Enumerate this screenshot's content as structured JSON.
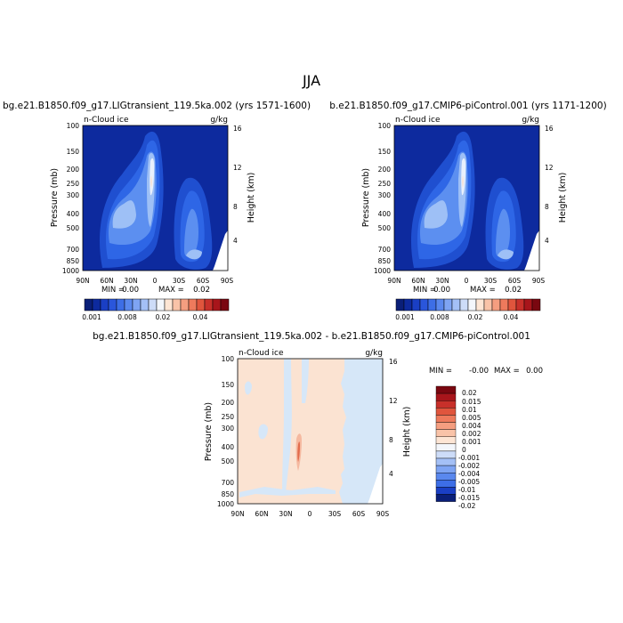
{
  "page_title": "JJA",
  "colors": {
    "background_ocean": "#0d2a9e",
    "diff_positive": "#fbe3d2",
    "diff_negative": "#d6e7f8"
  },
  "chart_data": [
    {
      "type": "heatmap",
      "title": "bg.e21.B1850.f09_g17.LIGtransient_119.5ka.002 (yrs 1571-1600)",
      "left_label": "n-Cloud ice",
      "right_label": "g/kg",
      "ylabel": "Pressure (mb)",
      "ylabel_right": "Height (km)",
      "x_ticks": [
        "90N",
        "60N",
        "30N",
        "0",
        "30S",
        "60S",
        "90S"
      ],
      "y_ticks": [
        "100",
        "150",
        "200",
        "250",
        "300",
        "400",
        "500",
        "700",
        "850",
        "1000"
      ],
      "y_right_ticks": [
        "16",
        "12",
        "8",
        "4"
      ],
      "min_label": "MIN =",
      "min_value": "0.00",
      "max_label": "MAX =",
      "max_value": "0.02",
      "colorbar_labels": [
        "0.001",
        "0.008",
        "0.02",
        "0.04"
      ]
    },
    {
      "type": "heatmap",
      "title": "b.e21.B1850.f09_g17.CMIP6-piControl.001 (yrs 1171-1200)",
      "left_label": "n-Cloud ice",
      "right_label": "g/kg",
      "ylabel": "Pressure (mb)",
      "ylabel_right": "Height (km)",
      "x_ticks": [
        "90N",
        "60N",
        "30N",
        "0",
        "30S",
        "60S",
        "90S"
      ],
      "y_ticks": [
        "100",
        "150",
        "200",
        "250",
        "300",
        "400",
        "500",
        "700",
        "850",
        "1000"
      ],
      "y_right_ticks": [
        "16",
        "12",
        "8",
        "4"
      ],
      "min_label": "MIN =",
      "min_value": "0.00",
      "max_label": "MAX =",
      "max_value": "0.02",
      "colorbar_labels": [
        "0.001",
        "0.008",
        "0.02",
        "0.04"
      ]
    },
    {
      "type": "heatmap",
      "title": "bg.e21.B1850.f09_g17.LIGtransient_119.5ka.002 - b.e21.B1850.f09_g17.CMIP6-piControl.001",
      "left_label": "n-Cloud ice",
      "right_label": "g/kg",
      "ylabel": "Pressure (mb)",
      "ylabel_right": "Height (km)",
      "x_ticks": [
        "90N",
        "60N",
        "30N",
        "0",
        "30S",
        "60S",
        "90S"
      ],
      "y_ticks": [
        "100",
        "150",
        "200",
        "250",
        "300",
        "400",
        "500",
        "700",
        "850",
        "1000"
      ],
      "y_right_ticks": [
        "16",
        "12",
        "8",
        "4"
      ],
      "min_label": "MIN =",
      "min_value": "-0.00",
      "max_label": "MAX =",
      "max_value": "0.00",
      "colorbar_labels": [
        "0.02",
        "0.015",
        "0.01",
        "0.005",
        "0.004",
        "0.002",
        "0.001",
        "0",
        "-0.001",
        "-0.002",
        "-0.004",
        "-0.005",
        "-0.01",
        "-0.015",
        "-0.02"
      ]
    }
  ]
}
